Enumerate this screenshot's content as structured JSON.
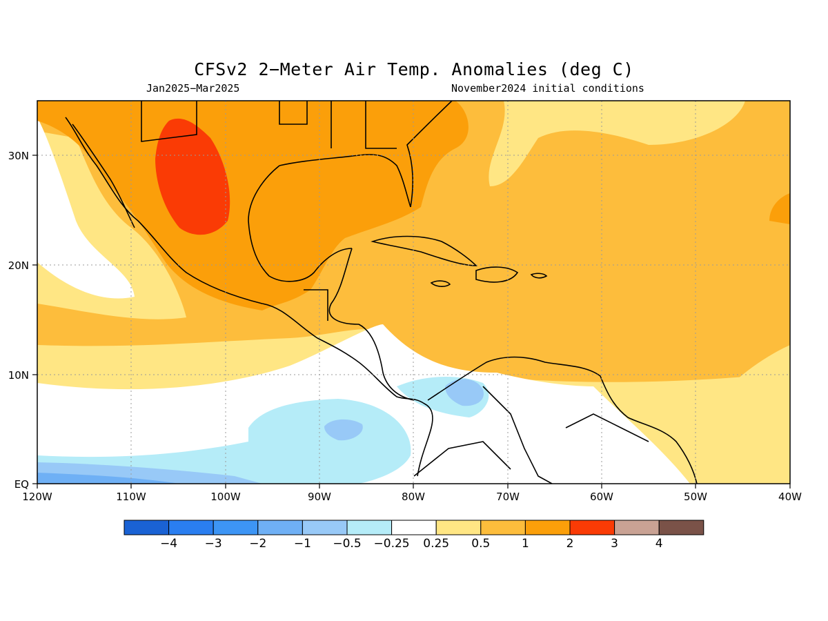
{
  "title": "CFSv2 2−Meter Air Temp. Anomalies (deg C)",
  "subtitle_left": "Jan2025−Mar2025",
  "subtitle_right": "November2024 initial conditions",
  "map": {
    "lon_labels": [
      "120W",
      "110W",
      "100W",
      "90W",
      "80W",
      "70W",
      "60W",
      "50W",
      "40W"
    ],
    "lat_labels": [
      "30N",
      "20N",
      "10N",
      "EQ"
    ],
    "lon_range": [
      -120,
      -40
    ],
    "lat_range": [
      0,
      35
    ],
    "gridlines": "dotted"
  },
  "colorbar": {
    "labels": [
      "−4",
      "−3",
      "−2",
      "−1",
      "−0.5",
      "−0.25",
      "0.25",
      "0.5",
      "1",
      "2",
      "3",
      "4"
    ],
    "colors": [
      "#1a62d4",
      "#2a7ef0",
      "#3d95f5",
      "#6fb0f5",
      "#98c9f7",
      "#b5ecf8",
      "#ffffff",
      "#ffe684",
      "#fdbd3c",
      "#fb9f0a",
      "#fa3b05",
      "#c9a294",
      "#7a5248"
    ]
  },
  "legend_colors": {
    "lt_neg1": "#98c9f7",
    "neg0_5": "#b5ecf8",
    "neutral": "#ffffff",
    "pos0_25": "#ffe684",
    "pos0_5": "#fdbd3c",
    "pos1": "#fb9f0a",
    "pos2": "#fa3b05"
  }
}
